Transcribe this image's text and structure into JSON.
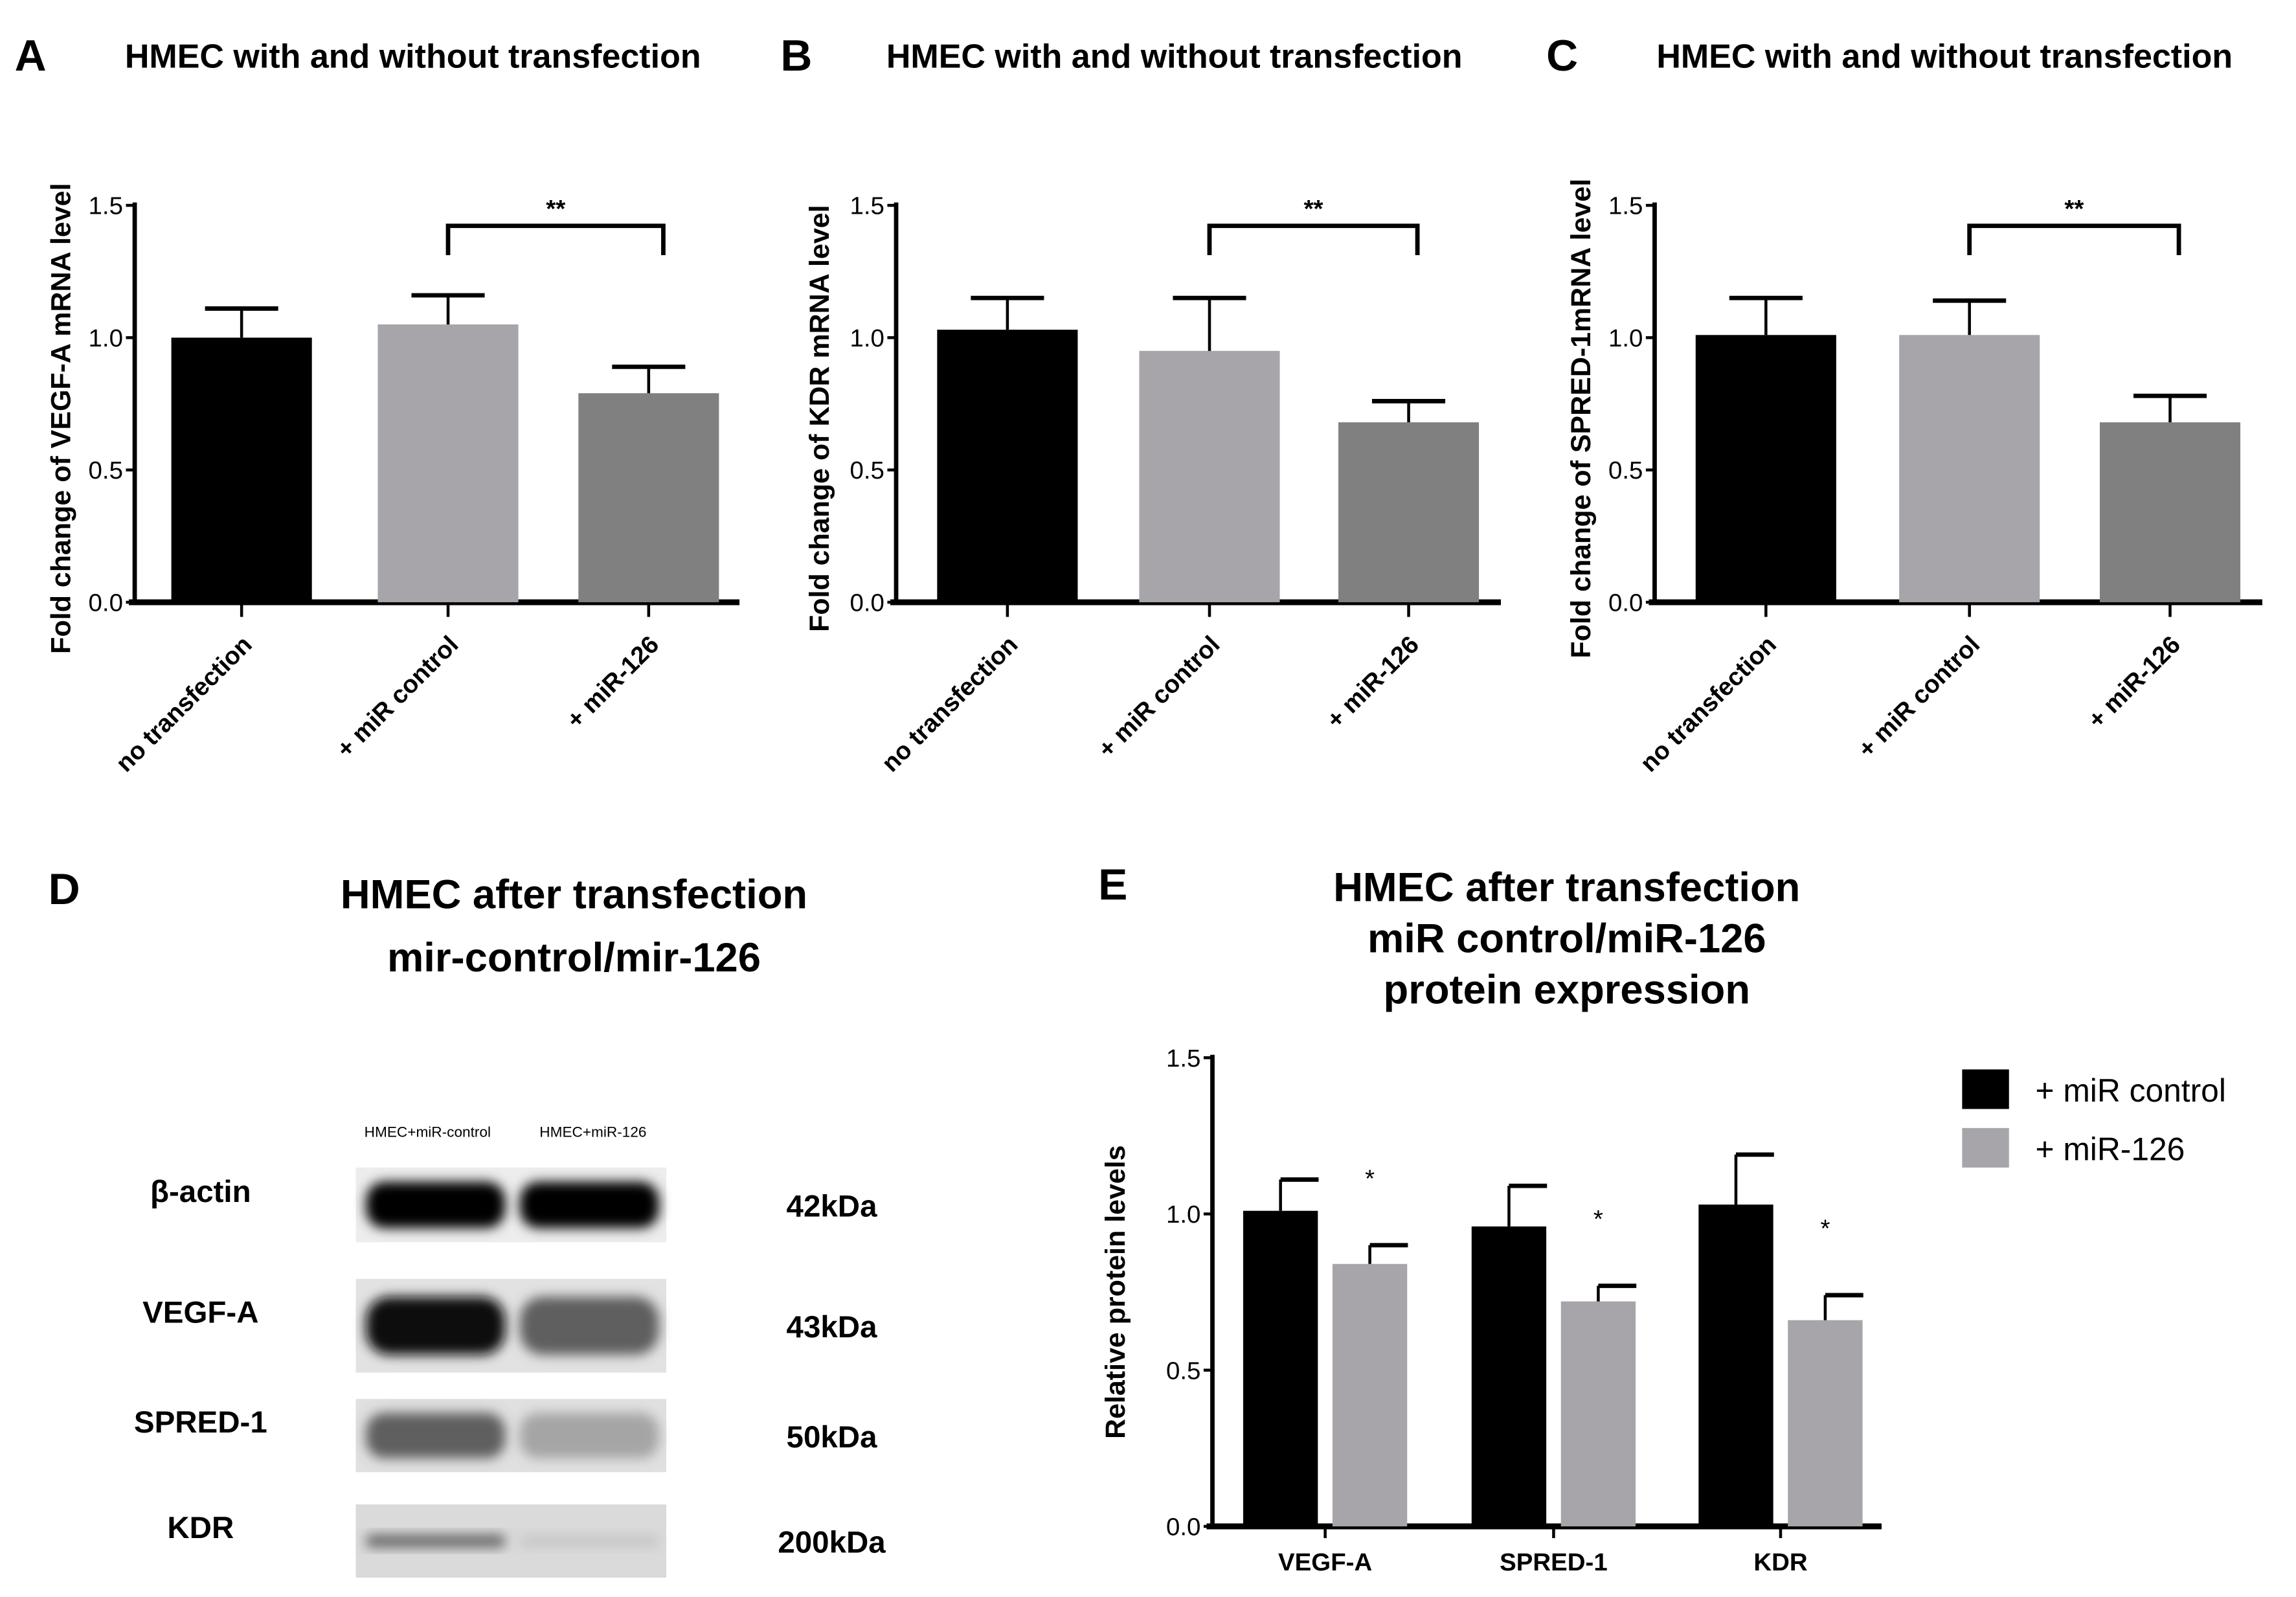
{
  "chart_data": [
    {
      "type": "bar",
      "panel": "A",
      "title": "HMEC with and without transfection",
      "ylabel": "Fold change of VEGF-A mRNA level",
      "xlabel": "",
      "ylim": [
        0,
        1.5
      ],
      "yticks": [
        "0.0",
        "0.5",
        "1.0",
        "1.5"
      ],
      "categories": [
        "no transfection",
        "+ miR control",
        "+ miR-126"
      ],
      "values": [
        1.0,
        1.05,
        0.79
      ],
      "error_upper": [
        1.11,
        1.16,
        0.89
      ],
      "colors": [
        "#000000",
        "#a7a4aa",
        "#808080"
      ],
      "significance": {
        "from": 1,
        "to": 2,
        "label": "**"
      }
    },
    {
      "type": "bar",
      "panel": "B",
      "title": "HMEC with and without transfection",
      "ylabel": "Fold change of KDR mRNA level",
      "xlabel": "",
      "ylim": [
        0,
        1.5
      ],
      "yticks": [
        "0.0",
        "0.5",
        "1.0",
        "1.5"
      ],
      "categories": [
        "no transfection",
        "+ miR control",
        "+ miR-126"
      ],
      "values": [
        1.03,
        0.95,
        0.68
      ],
      "error_upper": [
        1.15,
        1.15,
        0.76
      ],
      "colors": [
        "#000000",
        "#a7a4aa",
        "#808080"
      ],
      "significance": {
        "from": 1,
        "to": 2,
        "label": "**"
      }
    },
    {
      "type": "bar",
      "panel": "C",
      "title": "HMEC with and without transfection",
      "ylabel": "Fold change of SPRED-1mRNA level",
      "xlabel": "",
      "ylim": [
        0,
        1.5
      ],
      "yticks": [
        "0.0",
        "0.5",
        "1.0",
        "1.5"
      ],
      "categories": [
        "no transfection",
        "+ miR control",
        "+ miR-126"
      ],
      "values": [
        1.01,
        1.01,
        0.68
      ],
      "error_upper": [
        1.15,
        1.14,
        0.78
      ],
      "colors": [
        "#000000",
        "#a7a4aa",
        "#808080"
      ],
      "significance": {
        "from": 1,
        "to": 2,
        "label": "**"
      }
    },
    {
      "type": "bar",
      "panel": "E",
      "title": [
        "HMEC after transfection",
        "miR control/miR-126",
        "protein expression"
      ],
      "ylabel": "Relative protein levels",
      "xlabel": "",
      "ylim": [
        0,
        1.5
      ],
      "yticks": [
        "0.0",
        "0.5",
        "1.0",
        "1.5"
      ],
      "categories": [
        "VEGF-A",
        "SPRED-1",
        "KDR"
      ],
      "legend_position": "top-right",
      "series": [
        {
          "name": "+ miR control",
          "color": "#000000",
          "values": [
            1.01,
            0.96,
            1.03
          ],
          "error_upper": [
            1.11,
            1.09,
            1.19
          ]
        },
        {
          "name": "+ miR-126",
          "color": "#a7a4aa",
          "values": [
            0.84,
            0.72,
            0.66
          ],
          "error_upper": [
            0.9,
            0.77,
            0.74
          ]
        }
      ],
      "significance_label": "*"
    }
  ],
  "blot": {
    "panel": "D",
    "title": [
      "HMEC after transfection",
      "mir-control/mir-126"
    ],
    "lanes": [
      "HMEC+miR-control",
      "HMEC+miR-126"
    ],
    "rows": [
      {
        "protein": "β-actin",
        "size": "42kDa",
        "intensity": [
          1.0,
          1.0
        ]
      },
      {
        "protein": "VEGF-A",
        "size": "43kDa",
        "intensity": [
          0.95,
          0.6
        ]
      },
      {
        "protein": "SPRED-1",
        "size": "50kDa",
        "intensity": [
          0.6,
          0.3
        ]
      },
      {
        "protein": "KDR",
        "size": "200kDa",
        "intensity": [
          0.55,
          0.15
        ]
      }
    ]
  }
}
